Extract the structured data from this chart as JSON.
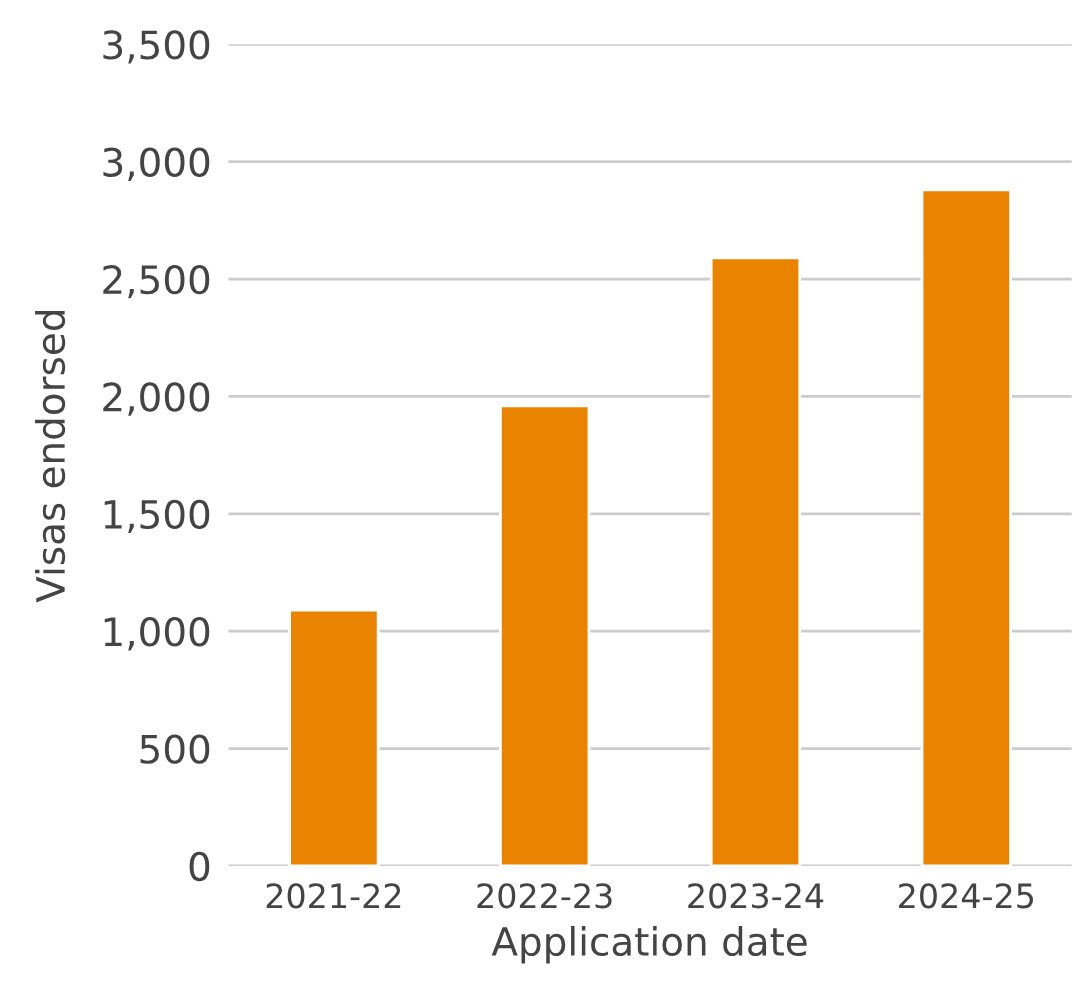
{
  "chart_data": {
    "type": "bar",
    "xlabel": "Application date",
    "ylabel": "Visas endorsed",
    "categories": [
      "2021-22",
      "2022-23",
      "2023-24",
      "2024-25"
    ],
    "values": [
      1090,
      1960,
      2590,
      2880
    ],
    "color": "#e98300",
    "ylim": [
      0,
      3500
    ],
    "yticks": [
      {
        "value": 0,
        "label": "0"
      },
      {
        "value": 500,
        "label": "500"
      },
      {
        "value": 1000,
        "label": "1,000"
      },
      {
        "value": 1500,
        "label": "1,500"
      },
      {
        "value": 2000,
        "label": "2,000"
      },
      {
        "value": 2500,
        "label": "2,500"
      },
      {
        "value": 3000,
        "label": "3,000"
      },
      {
        "value": 3500,
        "label": "3,500"
      }
    ],
    "grid": "y"
  }
}
